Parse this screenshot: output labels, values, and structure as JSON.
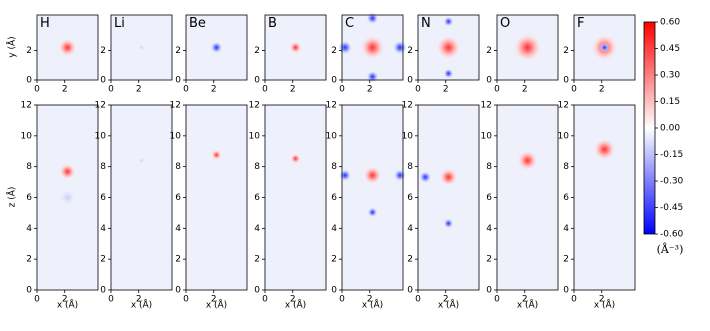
{
  "chart_data": {
    "type": "heatmap",
    "panels": [
      "H",
      "Li",
      "Be",
      "B",
      "C",
      "N",
      "O",
      "F"
    ],
    "top": {
      "ylabel": "y (Å)",
      "xlim": [
        0,
        4.4
      ],
      "ylim": [
        0,
        4.4
      ],
      "xticks": [
        0,
        2
      ],
      "yticks": [
        0,
        2
      ]
    },
    "bottom": {
      "xlabel": "x (Å)",
      "ylabel": "z (Å)",
      "xlim": [
        0,
        4.4
      ],
      "ylim": [
        0,
        12
      ],
      "xticks": [
        0,
        2
      ],
      "yticks": [
        0,
        2,
        4,
        6,
        8,
        10,
        12
      ]
    },
    "colorbar": {
      "lim": [
        -0.6,
        0.6
      ],
      "label": "(Å⁻³)",
      "colors": [
        "#0000ff",
        "#ffffff",
        "#ff0000"
      ],
      "ticks": [
        {
          "value": 0.6,
          "label": "0.60"
        },
        {
          "value": 0.45,
          "label": "0.45"
        },
        {
          "value": 0.3,
          "label": "0.30"
        },
        {
          "value": 0.15,
          "label": "0.15"
        },
        {
          "value": 0,
          "label": "0.00"
        },
        {
          "value": -0.15,
          "label": "-0.15"
        },
        {
          "value": -0.3,
          "label": "-0.30"
        },
        {
          "value": -0.45,
          "label": "-0.45"
        },
        {
          "value": -0.6,
          "label": "-0.60"
        }
      ]
    }
  }
}
